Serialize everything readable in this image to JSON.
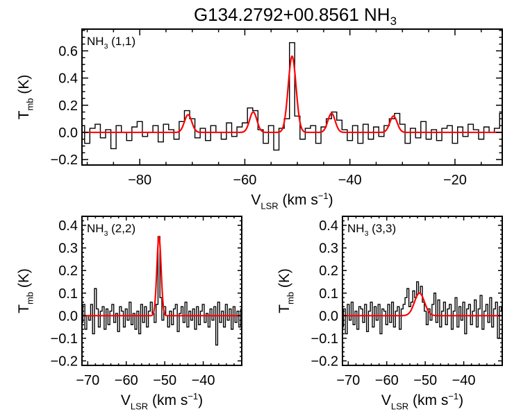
{
  "figure": {
    "title_main": "G134.2792+00.8561 NH",
    "title_sub": "3"
  },
  "chart_data": [
    {
      "type": "line",
      "panel_label": {
        "main": "NH",
        "sub": "3",
        "rest": " (1,1)"
      },
      "xlabel": {
        "main": "V",
        "sub": "LSR",
        "rest": " (km s",
        "sup": "−1",
        "end": ")"
      },
      "ylabel": {
        "main": "T",
        "sub": "mb",
        "rest": " (K)"
      },
      "xlim": [
        -91,
        -11
      ],
      "ylim": [
        -0.24,
        0.76
      ],
      "xticks": [
        -80,
        -60,
        -40,
        -20
      ],
      "xtick_labels": [
        "−80",
        "−60",
        "−40",
        "−20"
      ],
      "yticks": [
        -0.2,
        0.0,
        0.2,
        0.4,
        0.6
      ],
      "ytick_labels": [
        "−0.2",
        "0.0",
        "0.2",
        "0.4",
        "0.6"
      ],
      "series": [
        {
          "kind": "observed",
          "color": "#000000",
          "x": [
            -91,
            -90,
            -89,
            -88,
            -87,
            -86,
            -85,
            -84,
            -83,
            -82,
            -81,
            -80,
            -79,
            -78,
            -77,
            -76,
            -75,
            -74,
            -73,
            -72,
            -71,
            -70,
            -69,
            -68,
            -67,
            -66,
            -65,
            -64,
            -63,
            -62,
            -61,
            -60,
            -59,
            -58,
            -57,
            -56,
            -55,
            -54,
            -53,
            -52,
            -51,
            -50,
            -49,
            -48,
            -47,
            -46,
            -45,
            -44,
            -43,
            -42,
            -41,
            -40,
            -39,
            -38,
            -37,
            -36,
            -35,
            -34,
            -33,
            -32,
            -31,
            -30,
            -29,
            -28,
            -27,
            -26,
            -25,
            -24,
            -23,
            -22,
            -21,
            -20,
            -19,
            -18,
            -17,
            -16,
            -15,
            -14,
            -13,
            -12,
            -11
          ],
          "y": [
            0.05,
            -0.08,
            0.03,
            0.06,
            -0.04,
            0.02,
            -0.12,
            0.05,
            0.0,
            -0.06,
            0.04,
            0.08,
            -0.03,
            0.0,
            0.05,
            -0.07,
            0.06,
            0.02,
            -0.05,
            0.08,
            0.16,
            0.1,
            -0.04,
            0.03,
            -0.06,
            0.05,
            0.0,
            -0.05,
            0.07,
            -0.03,
            0.04,
            0.07,
            0.18,
            0.16,
            0.02,
            -0.08,
            0.05,
            -0.13,
            0.03,
            0.1,
            0.66,
            0.12,
            -0.05,
            0.03,
            0.05,
            -0.08,
            0.04,
            0.1,
            0.15,
            0.09,
            0.02,
            -0.06,
            0.05,
            -0.08,
            0.06,
            -0.05,
            0.04,
            -0.03,
            0.05,
            0.1,
            0.14,
            0.06,
            -0.08,
            0.03,
            -0.04,
            0.08,
            -0.05,
            0.02,
            -0.06,
            0.03,
            0.05,
            -0.08,
            0.04,
            -0.03,
            0.06,
            0.02,
            -0.05,
            0.04,
            0.0,
            0.03,
            0.14
          ]
        },
        {
          "kind": "fit",
          "color": "#ff0000",
          "components": [
            {
              "center": -70.8,
              "amplitude": 0.13,
              "sigma": 0.7
            },
            {
              "center": -58.4,
              "amplitude": 0.15,
              "sigma": 0.7
            },
            {
              "center": -51.0,
              "amplitude": 0.56,
              "sigma": 0.75
            },
            {
              "center": -43.5,
              "amplitude": 0.14,
              "sigma": 0.7
            },
            {
              "center": -31.7,
              "amplitude": 0.12,
              "sigma": 0.7
            }
          ]
        }
      ]
    },
    {
      "type": "line",
      "panel_label": {
        "main": "NH",
        "sub": "3",
        "rest": " (2,2)"
      },
      "xlabel": {
        "main": "V",
        "sub": "LSR",
        "rest": " (km s",
        "sup": "−1",
        "end": ")"
      },
      "ylabel": {
        "main": "T",
        "sub": "mb",
        "rest": " (K)"
      },
      "xlim": [
        -71.5,
        -30
      ],
      "ylim": [
        -0.22,
        0.44
      ],
      "xticks": [
        -70,
        -60,
        -50,
        -40
      ],
      "xtick_labels": [
        "−70",
        "−60",
        "−50",
        "−40"
      ],
      "yticks": [
        -0.2,
        -0.1,
        0.0,
        0.1,
        0.2,
        0.3,
        0.4
      ],
      "ytick_labels": [
        "−0.2",
        "−0.1",
        "0.0",
        "0.1",
        "0.2",
        "0.3",
        "0.4"
      ],
      "series": [
        {
          "kind": "observed",
          "color": "#000000",
          "x": [
            -71.5,
            -71,
            -70.5,
            -70,
            -69.5,
            -69,
            -68.5,
            -68,
            -67.5,
            -67,
            -66.5,
            -66,
            -65.5,
            -65,
            -64.5,
            -64,
            -63.5,
            -63,
            -62.5,
            -62,
            -61.5,
            -61,
            -60.5,
            -60,
            -59.5,
            -59,
            -58.5,
            -58,
            -57.5,
            -57,
            -56.5,
            -56,
            -55.5,
            -55,
            -54.5,
            -54,
            -53.5,
            -53,
            -52.5,
            -52,
            -51.5,
            -51,
            -50.5,
            -50,
            -49.5,
            -49,
            -48.5,
            -48,
            -47.5,
            -47,
            -46.5,
            -46,
            -45.5,
            -45,
            -44.5,
            -44,
            -43.5,
            -43,
            -42.5,
            -42,
            -41.5,
            -41,
            -40.5,
            -40,
            -39.5,
            -39,
            -38.5,
            -38,
            -37.5,
            -37,
            -36.5,
            -36,
            -35.5,
            -35,
            -34.5,
            -34,
            -33.5,
            -33,
            -32.5,
            -32,
            -31.5,
            -31,
            -30.5,
            -30
          ],
          "y": [
            -0.03,
            0.05,
            -0.06,
            0.0,
            -0.02,
            0.05,
            -0.08,
            0.12,
            0.03,
            -0.05,
            0.02,
            0.04,
            -0.06,
            0.03,
            -0.04,
            0.02,
            0.05,
            -0.03,
            0.01,
            -0.07,
            0.04,
            0.02,
            -0.05,
            0.03,
            -0.02,
            0.06,
            -0.04,
            0.01,
            -0.06,
            0.02,
            -0.08,
            0.05,
            -0.03,
            0.04,
            -0.05,
            0.02,
            0.06,
            0.01,
            -0.03,
            0.05,
            0.35,
            0.08,
            -0.02,
            0.04,
            0.0,
            -0.05,
            0.02,
            -0.04,
            0.03,
            0.05,
            -0.07,
            0.01,
            0.04,
            -0.03,
            0.06,
            -0.05,
            0.02,
            -0.02,
            0.03,
            -0.06,
            0.04,
            -0.04,
            0.02,
            0.05,
            -0.03,
            0.01,
            -0.05,
            0.03,
            -0.02,
            0.04,
            -0.13,
            0.06,
            -0.03,
            0.02,
            -0.05,
            0.05,
            -0.02,
            0.03,
            -0.06,
            0.04,
            -0.03,
            0.02,
            -0.05,
            0.03
          ]
        },
        {
          "kind": "fit",
          "color": "#ff0000",
          "components": [
            {
              "center": -51.5,
              "amplitude": 0.35,
              "sigma": 0.55
            }
          ]
        }
      ]
    },
    {
      "type": "line",
      "panel_label": {
        "main": "NH",
        "sub": "3",
        "rest": " (3,3)"
      },
      "xlabel": {
        "main": "V",
        "sub": "LSR",
        "rest": " (km s",
        "sup": "−1",
        "end": ")"
      },
      "ylabel": {
        "main": "T",
        "sub": "mb",
        "rest": " (K)"
      },
      "xlim": [
        -71.5,
        -30
      ],
      "ylim": [
        -0.22,
        0.44
      ],
      "xticks": [
        -70,
        -60,
        -50,
        -40
      ],
      "xtick_labels": [
        "−70",
        "−60",
        "−50",
        "−40"
      ],
      "yticks": [
        -0.2,
        -0.1,
        0.0,
        0.1,
        0.2,
        0.3,
        0.4
      ],
      "ytick_labels": [
        "−0.2",
        "−0.1",
        "0.0",
        "0.1",
        "0.2",
        "0.3",
        "0.4"
      ],
      "series": [
        {
          "kind": "observed",
          "color": "#000000",
          "x": [
            -71.5,
            -71,
            -70.5,
            -70,
            -69.5,
            -69,
            -68.5,
            -68,
            -67.5,
            -67,
            -66.5,
            -66,
            -65.5,
            -65,
            -64.5,
            -64,
            -63.5,
            -63,
            -62.5,
            -62,
            -61.5,
            -61,
            -60.5,
            -60,
            -59.5,
            -59,
            -58.5,
            -58,
            -57.5,
            -57,
            -56.5,
            -56,
            -55.5,
            -55,
            -54.5,
            -54,
            -53.5,
            -53,
            -52.5,
            -52,
            -51.5,
            -51,
            -50.5,
            -50,
            -49.5,
            -49,
            -48.5,
            -48,
            -47.5,
            -47,
            -46.5,
            -46,
            -45.5,
            -45,
            -44.5,
            -44,
            -43.5,
            -43,
            -42.5,
            -42,
            -41.5,
            -41,
            -40.5,
            -40,
            -39.5,
            -39,
            -38.5,
            -38,
            -37.5,
            -37,
            -36.5,
            -36,
            -35.5,
            -35,
            -34.5,
            -34,
            -33.5,
            -33,
            -32.5,
            -32,
            -31.5,
            -31,
            -30.5,
            -30
          ],
          "y": [
            -0.05,
            0.03,
            -0.08,
            0.05,
            -0.02,
            0.06,
            -0.04,
            0.02,
            -0.06,
            0.04,
            0.03,
            -0.03,
            0.05,
            -0.07,
            0.02,
            0.06,
            -0.05,
            0.04,
            -0.02,
            0.05,
            -0.08,
            0.03,
            0.02,
            -0.04,
            0.05,
            -0.03,
            0.06,
            -0.05,
            0.02,
            0.04,
            -0.06,
            0.03,
            0.05,
            0.08,
            0.12,
            0.04,
            0.06,
            0.11,
            0.08,
            0.15,
            0.1,
            0.13,
            0.06,
            0.02,
            -0.04,
            0.03,
            -0.02,
            0.05,
            0.1,
            -0.03,
            0.07,
            -0.05,
            0.02,
            0.06,
            -0.04,
            0.03,
            0.05,
            -0.06,
            0.02,
            0.08,
            -0.05,
            0.04,
            -0.02,
            0.06,
            -0.08,
            0.03,
            0.05,
            -0.04,
            0.02,
            0.07,
            -0.05,
            0.03,
            0.09,
            -0.06,
            0.02,
            0.05,
            -0.03,
            0.08,
            -0.05,
            0.03,
            0.06,
            -0.1,
            0.04,
            0.02
          ]
        },
        {
          "kind": "fit",
          "color": "#ff0000",
          "components": [
            {
              "center": -51.5,
              "amplitude": 0.1,
              "sigma": 1.3
            }
          ]
        }
      ]
    }
  ]
}
